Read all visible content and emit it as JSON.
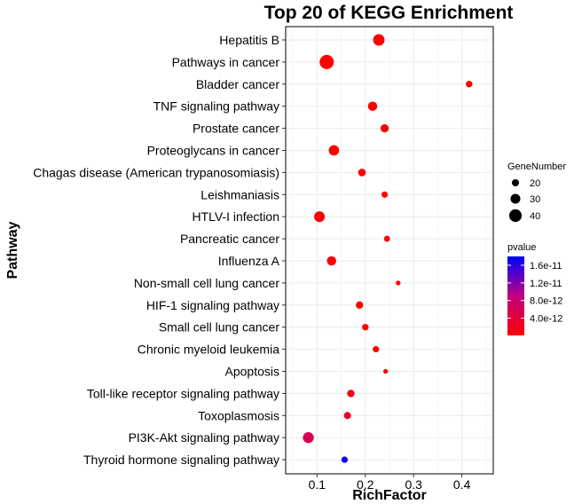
{
  "chart_data": {
    "type": "scatter",
    "title": "Top 20 of KEGG Enrichment",
    "xlabel": "RichFactor",
    "ylabel": "Pathway",
    "xlim": [
      0.035,
      0.465
    ],
    "xticks": [
      0.1,
      0.2,
      0.3,
      0.4
    ],
    "xtick_labels": [
      "0.1",
      "0.2",
      "0.3",
      "0.4"
    ],
    "grid": true,
    "categories": [
      "Hepatitis B",
      "Pathways in cancer",
      "Bladder cancer",
      "TNF signaling pathway",
      "Prostate cancer",
      "Proteoglycans in cancer",
      "Chagas disease (American trypanosomiasis)",
      "Leishmaniasis",
      "HTLV-I infection",
      "Pancreatic cancer",
      "Influenza A",
      "Non-small cell lung cancer",
      "HIF-1 signaling pathway",
      "Small cell lung cancer",
      "Chronic myeloid leukemia",
      "Apoptosis",
      "Toll-like receptor signaling pathway",
      "Toxoplasmosis",
      "PI3K-Akt signaling pathway",
      "Thyroid hormone signaling pathway"
    ],
    "rich_factor": [
      0.228,
      0.12,
      0.415,
      0.215,
      0.24,
      0.135,
      0.193,
      0.24,
      0.105,
      0.245,
      0.13,
      0.268,
      0.188,
      0.2,
      0.222,
      0.242,
      0.17,
      0.163,
      0.082,
      0.157
    ],
    "gene_number": [
      36,
      46,
      18,
      28,
      24,
      32,
      22,
      17,
      33,
      16,
      28,
      11,
      21,
      18,
      17,
      11,
      21,
      20,
      34,
      17
    ],
    "pvalue": [
      1e-13,
      1e-13,
      1e-13,
      1e-13,
      1e-13,
      1e-13,
      1e-13,
      1e-13,
      1e-13,
      1e-13,
      1e-13,
      1e-13,
      1e-13,
      1e-13,
      1e-13,
      1e-13,
      2e-12,
      3e-12,
      6e-12,
      1.8e-11
    ],
    "size_legend": {
      "title": "GeneNumber",
      "values": [
        20,
        30,
        40
      ],
      "labels": [
        "20",
        "30",
        "40"
      ]
    },
    "color_legend": {
      "title": "pvalue",
      "range": [
        1e-13,
        1.8e-11
      ],
      "low_color": "#FF0000",
      "high_color": "#0000FF",
      "breaks": [
        4e-12,
        8e-12,
        1.2e-11,
        1.6e-11
      ],
      "labels": [
        "4.0e-12",
        "8.0e-12",
        "1.2e-11",
        "1.6e-11"
      ]
    },
    "colors": {
      "grid": "#EBEBEB",
      "panel_border": "#000000",
      "text": "#000000"
    }
  }
}
